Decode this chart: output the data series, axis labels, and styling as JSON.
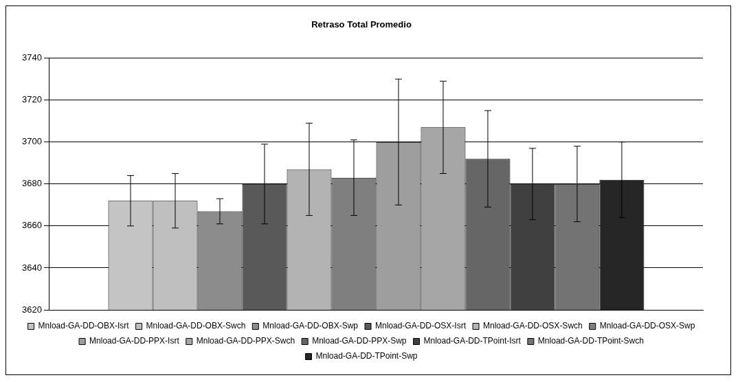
{
  "chart_data": {
    "type": "bar",
    "title": "Retraso Total Promedio",
    "categories": [
      null
    ],
    "series": [
      {
        "name": "Mnload-GA-DD-OBX-Isrt",
        "color": "#c4c4c4",
        "values": [
          3672
        ],
        "errors": [
          12
        ]
      },
      {
        "name": "Mnload-GA-DD-OBX-Swch",
        "color": "#bfbfbf",
        "values": [
          3672
        ],
        "errors": [
          13
        ]
      },
      {
        "name": "Mnload-GA-DD-OBX-Swp",
        "color": "#8c8c8c",
        "values": [
          3667
        ],
        "errors": [
          6
        ]
      },
      {
        "name": "Mnload-GA-DD-OSX-Isrt",
        "color": "#595959",
        "values": [
          3680
        ],
        "errors": [
          19
        ]
      },
      {
        "name": "Mnload-GA-DD-OSX-Swch",
        "color": "#b3b3b3",
        "values": [
          3687
        ],
        "errors": [
          22
        ]
      },
      {
        "name": "Mnload-GA-DD-OSX-Swp",
        "color": "#7f7f7f",
        "values": [
          3683
        ],
        "errors": [
          18
        ]
      },
      {
        "name": "Mnload-GA-DD-PPX-Isrt",
        "color": "#9e9e9e",
        "values": [
          3700
        ],
        "errors": [
          30
        ]
      },
      {
        "name": "Mnload-GA-DD-PPX-Swch",
        "color": "#a6a6a6",
        "values": [
          3707
        ],
        "errors": [
          22
        ]
      },
      {
        "name": "Mnload-GA-DD-PPX-Swp",
        "color": "#666666",
        "values": [
          3692
        ],
        "errors": [
          23
        ]
      },
      {
        "name": "Mnload-GA-DD-TPoint-Isrt",
        "color": "#404040",
        "values": [
          3680
        ],
        "errors": [
          17
        ]
      },
      {
        "name": "Mnload-GA-DD-TPoint-Swch",
        "color": "#737373",
        "values": [
          3680
        ],
        "errors": [
          18
        ]
      },
      {
        "name": "Mnload-GA-DD-TPoint-Swp",
        "color": "#262626",
        "values": [
          3682
        ],
        "errors": [
          18
        ]
      }
    ],
    "ylim": [
      3620,
      3740
    ],
    "yticks": [
      3620,
      3640,
      3660,
      3680,
      3700,
      3720,
      3740
    ],
    "grid": "y",
    "legend": "bottom",
    "tick_labels": "y"
  }
}
